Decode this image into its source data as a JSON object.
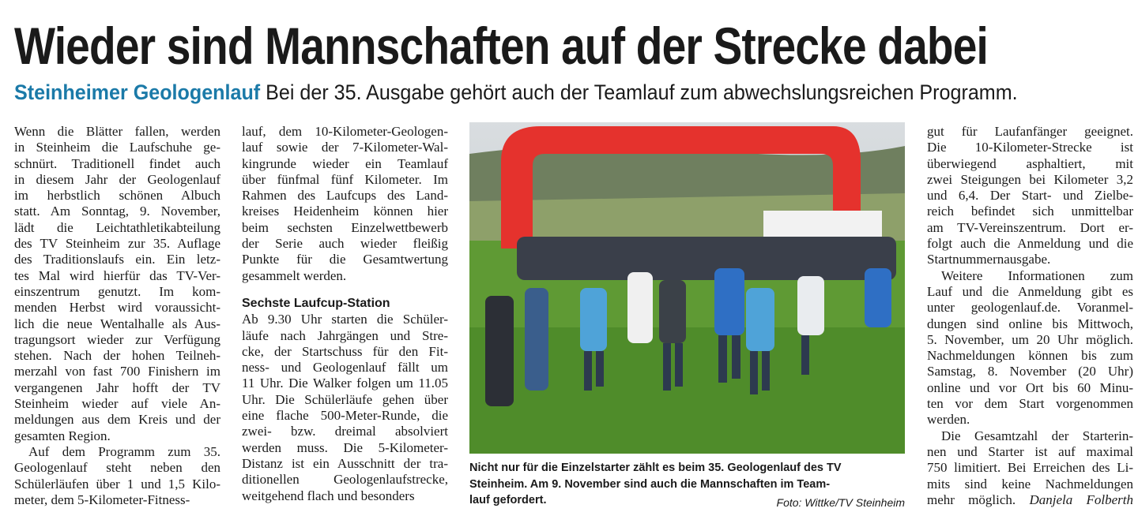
{
  "headline": "Wieder sind Mannschaften auf der Strecke dabei",
  "subline": {
    "kicker": "Steinheimer Geologenlauf",
    "text": "Bei der 35. Ausgabe gehört auch der Teamlauf zum abwechslungsreichen Programm."
  },
  "columns": [
    {
      "items": [
        {
          "lines": [
            "Wenn die Blätter fallen, werden",
            "in Steinheim die Laufschuhe ge-",
            "schnürt. Traditionell findet auch",
            "in diesem Jahr der Geologenlauf",
            "im herbstlich schönen Albuch",
            "statt. Am Sonntag, 9. November,",
            "lädt die Leichtathletikabteilung",
            "des TV Steinheim zur 35. Auflage",
            "des Traditionslaufs ein. Ein letz-",
            "tes Mal wird hierfür das TV-Ver-",
            "einszentrum genutzt. Im kom-",
            "menden Herbst wird voraussicht-",
            "lich die neue Wentalhalle als Aus-",
            "tragungsort wieder zur Verfügung",
            "stehen. Nach der hohen Teilneh-",
            "merzahl von fast 700 Finishern im",
            "vergangenen Jahr hofft der TV",
            "Steinheim wieder auf viele An-",
            "meldungen aus dem Kreis und der",
            "gesamten Region."
          ]
        },
        {
          "lines": [
            "Auf dem Programm zum 35.",
            "Geologenlauf steht neben den",
            "Schülerläufen über 1 und 1,5 Kilo-",
            "meter, dem 5-Kilometer-Fitness-"
          ]
        }
      ]
    },
    {
      "items": [
        {
          "lines": [
            "lauf, dem 10-Kilometer-Geologen-",
            "lauf sowie der 7-Kilometer-Wal-",
            "kingrunde wieder ein Teamlauf",
            "über fünfmal fünf Kilometer. Im",
            "Rahmen des Laufcups des Land-",
            "kreises Heidenheim können hier",
            "beim sechsten Einzelwettbewerb",
            "der Serie auch wieder fleißig",
            "Punkte für die Gesamtwertung",
            "gesammelt werden."
          ]
        },
        {
          "heading": "Sechste Laufcup-Station"
        },
        {
          "lines": [
            "Ab 9.30 Uhr starten die Schüler-",
            "läufe nach Jahrgängen und Stre-",
            "cke, der Startschuss für den Fit-",
            "ness- und Geologenlauf fällt um",
            "11 Uhr. Die Walker folgen um 11.05",
            "Uhr. Die Schülerläufe gehen über",
            "eine flache 500-Meter-Runde, die",
            "zwei- bzw. dreimal absolviert",
            "werden muss. Die 5-Kilometer-",
            "Distanz ist ein Ausschnitt der tra-",
            "ditionellen Geologenlaufstrecke,",
            "weitgehend flach und besonders"
          ]
        }
      ]
    },
    {
      "items": [
        {
          "lines": [
            "gut für Laufanfänger geeignet.",
            "Die 10-Kilometer-Strecke ist",
            "überwiegend asphaltiert, mit",
            "zwei Steigungen bei Kilometer 3,2",
            "und 6,4. Der Start- und Zielbe-",
            "reich befindet sich unmittelbar",
            "am TV-Vereinszentrum. Dort er-",
            "folgt auch die Anmeldung und die",
            "Startnummernausgabe."
          ]
        },
        {
          "lines": [
            "Weitere Informationen zum",
            "Lauf und die Anmeldung gibt es",
            "unter geologenlauf.de. Voranmel-",
            "dungen sind online bis Mittwoch,",
            "5. November, um 20 Uhr möglich.",
            "Nachmeldungen können bis zum",
            "Samstag, 8. November (20 Uhr)",
            "online und vor Ort bis 60 Minu-",
            "ten vor dem Start vorgenommen",
            "werden."
          ]
        },
        {
          "lines": [
            "Die Gesamtzahl der Starterin-",
            "nen und Starter ist auf maximal",
            "750 limitiert. Bei Erreichen des Li-",
            "mits sind keine Nachmeldungen",
            "mehr möglich."
          ]
        }
      ]
    }
  ],
  "author": "Danjela Folberth",
  "photo": {
    "caption_lines": [
      "Nicht nur für die Einzelstarter zählt es beim 35. Geologenlauf des TV",
      "Steinheim. Am 9. November sind auch die Mannschaften im Team-",
      "lauf gefordert."
    ],
    "credit": "Foto: Wittke/TV Steinheim"
  }
}
